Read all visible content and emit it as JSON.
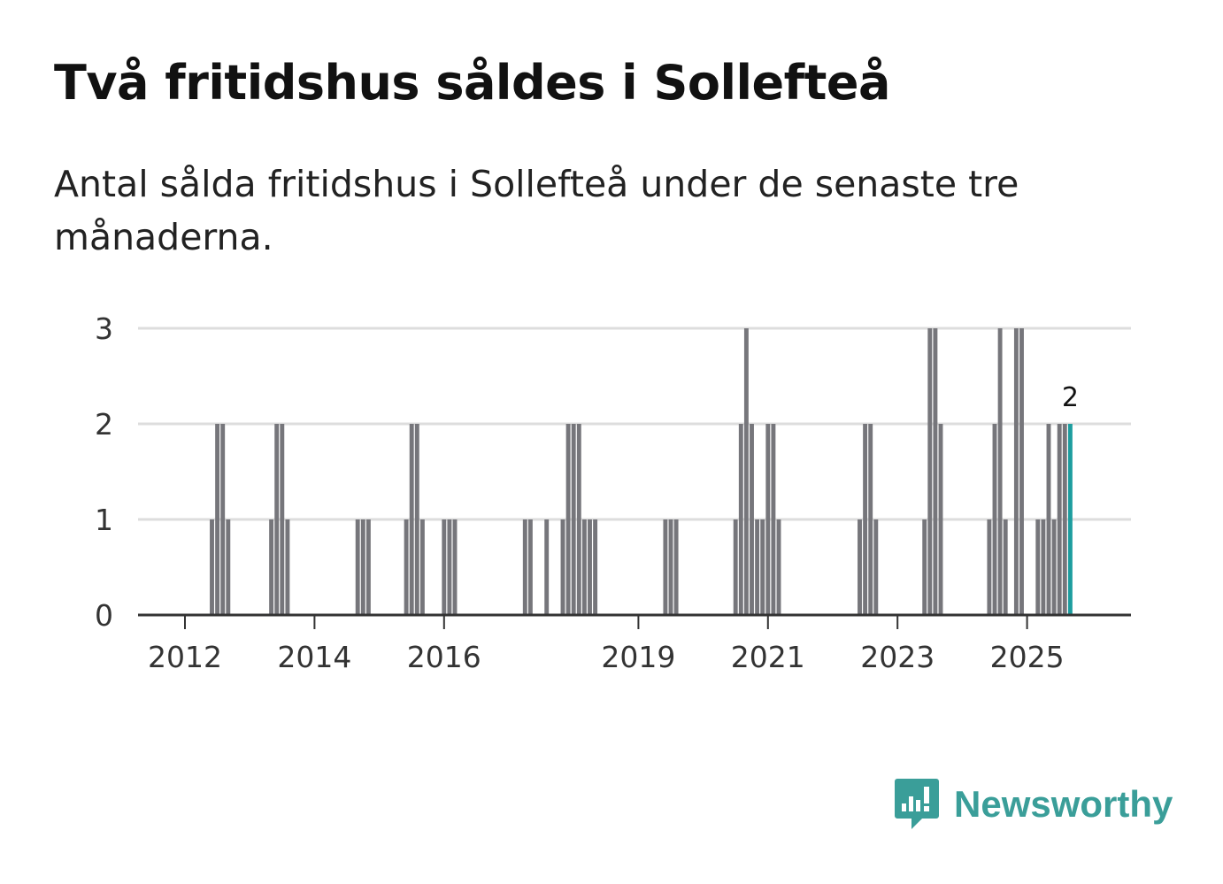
{
  "title": "Två fritidshus såldes i Sollefteå",
  "subtitle": "Antal sålda fritidshus i Sollefteå under de senaste tre månaderna.",
  "logo": {
    "text": "Newsworthy",
    "icon": "newsworthy-logo-icon"
  },
  "colors": {
    "bar": "#76767b",
    "highlight": "#1d9d9f",
    "grid": "#dddddd",
    "axis": "#333333",
    "brand": "#3a9e99"
  },
  "chart_data": {
    "type": "bar",
    "title": "Två fritidshus såldes i Sollefteå",
    "xlabel": "",
    "ylabel": "",
    "ylim": [
      0,
      3
    ],
    "y_ticks": [
      0,
      1,
      2,
      3
    ],
    "x_ticks": [
      "2012",
      "2014",
      "2016",
      "2019",
      "2021",
      "2023",
      "2025"
    ],
    "x_unit": "month",
    "start": "2011-05",
    "end": "2025-09",
    "highlight": {
      "month": "2025-09",
      "value": 2,
      "label": "2"
    },
    "monthly_values": {
      "2012-06": 1,
      "2012-07": 2,
      "2012-08": 2,
      "2012-09": 1,
      "2013-05": 1,
      "2013-06": 2,
      "2013-07": 2,
      "2013-08": 1,
      "2014-09": 1,
      "2014-10": 1,
      "2014-11": 1,
      "2015-06": 1,
      "2015-07": 2,
      "2015-08": 2,
      "2015-09": 1,
      "2016-01": 1,
      "2016-02": 1,
      "2016-03": 1,
      "2017-04": 1,
      "2017-05": 1,
      "2017-08": 1,
      "2017-11": 1,
      "2017-12": 2,
      "2018-01": 2,
      "2018-02": 2,
      "2018-03": 1,
      "2018-04": 1,
      "2018-05": 1,
      "2019-06": 1,
      "2019-07": 1,
      "2019-08": 1,
      "2020-07": 1,
      "2020-08": 2,
      "2020-09": 3,
      "2020-10": 2,
      "2020-11": 1,
      "2020-12": 1,
      "2021-01": 2,
      "2021-02": 2,
      "2021-03": 1,
      "2022-06": 1,
      "2022-07": 2,
      "2022-08": 2,
      "2022-09": 1,
      "2023-06": 1,
      "2023-07": 3,
      "2023-08": 3,
      "2023-09": 2,
      "2024-06": 1,
      "2024-07": 2,
      "2024-08": 3,
      "2024-09": 1,
      "2024-11": 3,
      "2024-12": 3,
      "2025-03": 1,
      "2025-04": 1,
      "2025-05": 2,
      "2025-06": 1,
      "2025-07": 2,
      "2025-08": 2,
      "2025-09": 2
    }
  }
}
